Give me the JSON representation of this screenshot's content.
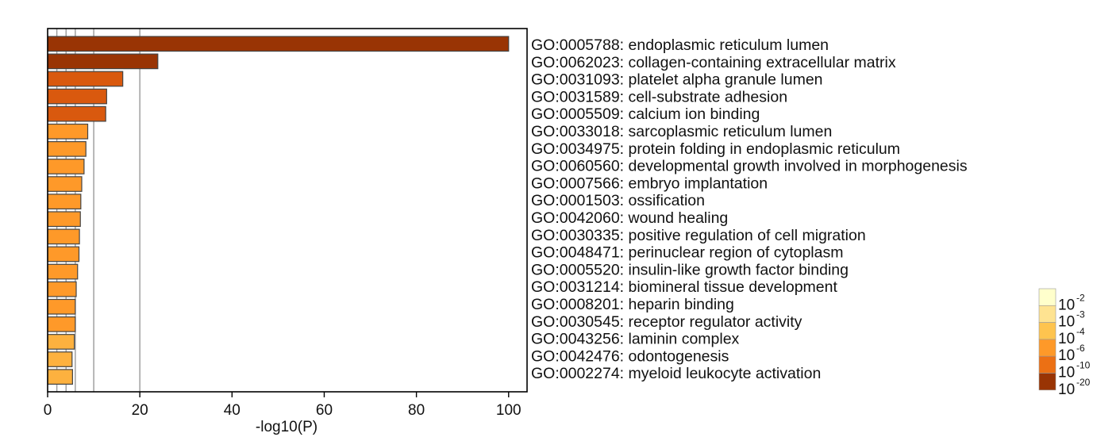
{
  "chart_data": {
    "type": "bar",
    "orientation": "horizontal",
    "xlabel": "-log10(P)",
    "xlim": [
      0,
      104
    ],
    "xticks": [
      0,
      20,
      40,
      60,
      80,
      100
    ],
    "reference_lines": [
      2,
      4,
      6,
      10,
      20
    ],
    "categories": [
      "GO:0005788: endoplasmic reticulum lumen",
      "GO:0062023: collagen-containing extracellular matrix",
      "GO:0031093: platelet alpha granule lumen",
      "GO:0031589: cell-substrate adhesion",
      "GO:0005509: calcium ion binding",
      "GO:0033018: sarcoplasmic reticulum lumen",
      "GO:0034975: protein folding in endoplasmic reticulum",
      "GO:0060560: developmental growth involved in morphogenesis",
      "GO:0007566: embryo implantation",
      "GO:0001503: ossification",
      "GO:0042060: wound healing",
      "GO:0030335: positive regulation of cell migration",
      "GO:0048471: perinuclear region of cytoplasm",
      "GO:0005520: insulin-like growth factor binding",
      "GO:0031214: biomineral tissue development",
      "GO:0008201: heparin binding",
      "GO:0030545: receptor regulator activity",
      "GO:0043256: laminin complex",
      "GO:0042476: odontogenesis",
      "GO:0002274: myeloid leukocyte activation"
    ],
    "values": [
      100,
      23.9,
      16.3,
      12.8,
      12.6,
      8.7,
      8.3,
      7.9,
      7.4,
      7.2,
      7.1,
      6.9,
      6.8,
      6.5,
      6.2,
      6.0,
      6.0,
      5.8,
      5.3,
      5.4
    ],
    "legend": {
      "title": "",
      "placement": "bottom-right",
      "entries": [
        {
          "base": "10",
          "exp": "-2",
          "color": "#ffffcc"
        },
        {
          "base": "10",
          "exp": "-3",
          "color": "#fee391"
        },
        {
          "base": "10",
          "exp": "-4",
          "color": "#fec44f"
        },
        {
          "base": "10",
          "exp": "-6",
          "color": "#fe9929"
        },
        {
          "base": "10",
          "exp": "-10",
          "color": "#ec7014"
        },
        {
          "base": "10",
          "exp": "-20",
          "color": "#993404"
        }
      ]
    },
    "colors": {
      "bar_outline": "#444444",
      "gridline": "#9a9a9a",
      "frame": "#000000"
    }
  }
}
